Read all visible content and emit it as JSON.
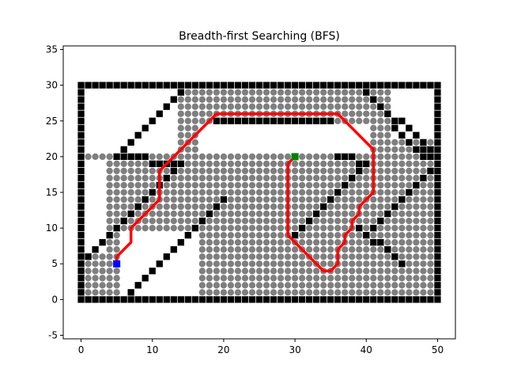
{
  "chart_data": {
    "type": "scatter",
    "title": "Breadth-first Searching (BFS)",
    "xlim": [
      -2.5,
      52.5
    ],
    "ylim": [
      -5.5,
      35.5
    ],
    "xticks": [
      0,
      10,
      20,
      30,
      40,
      50
    ],
    "yticks": [
      -5,
      0,
      5,
      10,
      15,
      20,
      25,
      30,
      35
    ],
    "grid": false,
    "colors": {
      "obstacle": "#000000",
      "visited": "#7f7f7f",
      "path": "#ff0000",
      "start": "#0000ff",
      "goal": "#008000"
    },
    "start": [
      5,
      5
    ],
    "goal": [
      30,
      20
    ],
    "border": {
      "x": [
        0,
        50
      ],
      "y": [
        0,
        30
      ]
    },
    "obstacle_segments": [
      {
        "from": [
          19,
          25
        ],
        "to": [
          35,
          25
        ]
      },
      {
        "from": [
          6,
          0
        ],
        "to": [
          15,
          9
        ]
      },
      {
        "from": [
          15,
          9
        ],
        "to": [
          20,
          14
        ]
      },
      {
        "from": [
          0,
          5
        ],
        "to": [
          14,
          19
        ]
      },
      {
        "from": [
          14,
          19
        ],
        "to": [
          5,
          20
        ]
      },
      {
        "from": [
          5,
          20
        ],
        "to": [
          14,
          29
        ]
      },
      {
        "from": [
          14,
          29
        ],
        "to": [
          15,
          30
        ]
      },
      {
        "from": [
          30,
          9
        ],
        "to": [
          40,
          19
        ]
      },
      {
        "from": [
          40,
          19
        ],
        "to": [
          36,
          20
        ]
      },
      {
        "from": [
          39,
          10
        ],
        "to": [
          45,
          5
        ]
      },
      {
        "from": [
          41,
          10
        ],
        "to": [
          50,
          19
        ]
      },
      {
        "from": [
          50,
          19
        ],
        "to": [
          45,
          25
        ]
      },
      {
        "from": [
          45,
          25
        ],
        "to": [
          49,
          21
        ]
      },
      {
        "from": [
          48,
          20
        ],
        "to": [
          40,
          29
        ]
      }
    ],
    "visited_regions": [
      {
        "x": [
          1,
          49
        ],
        "y": [
          1,
          29
        ]
      }
    ],
    "unvisited_regions": [
      {
        "x": [
          17,
          40
        ],
        "y": [
          21,
          24
        ]
      },
      {
        "x": [
          6,
          16
        ],
        "y": [
          1,
          9
        ]
      },
      {
        "x": [
          1,
          13
        ],
        "y": [
          21,
          29
        ]
      },
      {
        "x": [
          44,
          49
        ],
        "y": [
          23,
          29
        ]
      },
      {
        "x": [
          1,
          3
        ],
        "y": [
          7,
          19
        ]
      }
    ],
    "path": {
      "x": [
        5,
        5,
        6,
        7,
        7,
        8,
        9,
        10,
        11,
        11,
        11,
        12,
        13,
        14,
        15,
        16,
        17,
        18,
        19,
        20,
        21,
        22,
        23,
        24,
        25,
        26,
        27,
        28,
        29,
        30,
        31,
        32,
        33,
        34,
        35,
        36,
        37,
        38,
        39,
        40,
        41,
        41,
        41,
        41,
        40,
        39,
        39,
        38,
        38,
        37,
        37,
        36,
        36,
        35,
        34,
        33,
        32,
        31,
        30,
        29,
        29,
        29,
        29,
        29,
        29,
        29,
        29,
        29,
        29,
        29,
        29,
        30
      ],
      "y": [
        5,
        6,
        7,
        8,
        10,
        11,
        12,
        13,
        14,
        16,
        18,
        19,
        20,
        21,
        22,
        23,
        24,
        25,
        26,
        26,
        26,
        26,
        26,
        26,
        26,
        26,
        26,
        26,
        26,
        26,
        26,
        26,
        26,
        26,
        26,
        26,
        25,
        24,
        23,
        22,
        21,
        19,
        17,
        15,
        14,
        13,
        12,
        11,
        10,
        9,
        8,
        7,
        5,
        4,
        4,
        5,
        6,
        7,
        8,
        9,
        11,
        12,
        13,
        14,
        15,
        16,
        17,
        18,
        19,
        19,
        19,
        20
      ]
    }
  }
}
